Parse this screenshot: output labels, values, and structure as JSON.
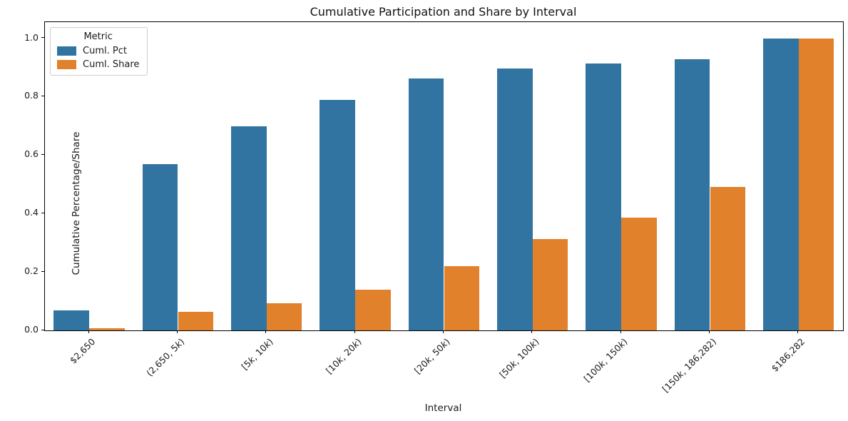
{
  "chart_data": {
    "type": "bar",
    "title": "Cumulative Participation and Share by Interval",
    "xlabel": "Interval",
    "ylabel": "Cumulative Percentage/Share",
    "categories": [
      "$2,650",
      "(2,650, 5k)",
      "[5k, 10k)",
      "[10k, 20k)",
      "[20k, 50k)",
      "[50k, 100k)",
      "[100k, 150k)",
      "[150k, 186,282)",
      "$186,282"
    ],
    "series": [
      {
        "name": "Cuml. Pct",
        "color": "#3274a1",
        "values": [
          0.068,
          0.569,
          0.699,
          0.789,
          0.861,
          0.897,
          0.914,
          0.928,
          1.0
        ]
      },
      {
        "name": "Cuml. Share",
        "color": "#e1812c",
        "values": [
          0.008,
          0.064,
          0.094,
          0.139,
          0.219,
          0.313,
          0.387,
          0.491,
          1.0
        ]
      }
    ],
    "ylim": [
      0,
      1.055
    ],
    "yticks": [
      0.0,
      0.2,
      0.4,
      0.6,
      0.8,
      1.0
    ],
    "grid": false,
    "bar_group_fraction": 0.8,
    "x_tick_rotation": 45,
    "legend": {
      "title": "Metric",
      "position": "upper left"
    }
  }
}
